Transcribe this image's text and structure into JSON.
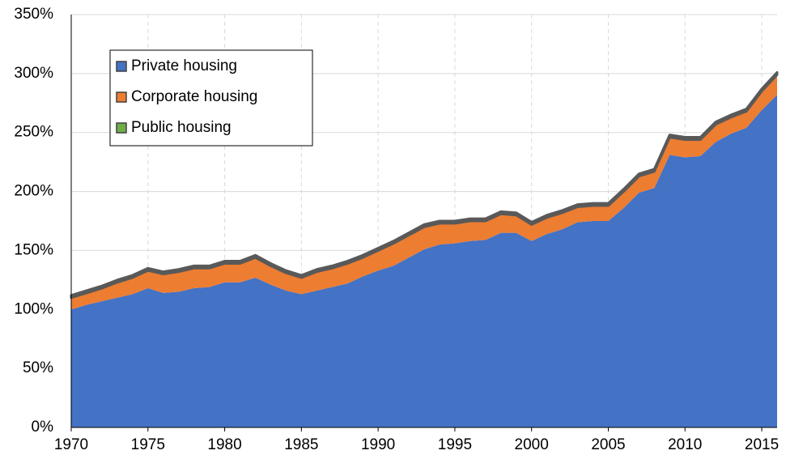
{
  "chart_data": {
    "type": "stacked_area",
    "x": [
      1970,
      1971,
      1972,
      1973,
      1974,
      1975,
      1976,
      1977,
      1978,
      1979,
      1980,
      1981,
      1982,
      1983,
      1984,
      1985,
      1986,
      1987,
      1988,
      1989,
      1990,
      1991,
      1992,
      1993,
      1994,
      1995,
      1996,
      1997,
      1998,
      1999,
      2000,
      2001,
      2002,
      2003,
      2004,
      2005,
      2006,
      2007,
      2008,
      2009,
      2010,
      2011,
      2012,
      2013,
      2014,
      2015,
      2016
    ],
    "series": [
      {
        "name": "Private housing",
        "color": "#4472c4",
        "values": [
          100,
          104,
          107,
          110,
          113,
          118,
          114,
          115,
          118,
          119,
          123,
          123,
          127,
          121,
          116,
          113,
          116,
          119,
          122,
          128,
          133,
          137,
          144,
          151,
          155,
          156,
          158,
          159,
          165,
          165,
          158,
          164,
          168,
          174,
          175,
          175,
          186,
          199,
          203,
          231,
          229,
          230,
          242,
          249,
          254,
          269,
          282
        ]
      },
      {
        "name": "Corporate housing",
        "color": "#ed7d31",
        "values": [
          10,
          10,
          11,
          13,
          14,
          15,
          16,
          17,
          17,
          16,
          16,
          16,
          17,
          16,
          15,
          14,
          16,
          16,
          17,
          16,
          17,
          19,
          19,
          19,
          18,
          17,
          17,
          16,
          16,
          15,
          14,
          14,
          14,
          13,
          13,
          13,
          14,
          14,
          14,
          15,
          15,
          14,
          15,
          14,
          14,
          16,
          17
        ]
      },
      {
        "name": "Public housing",
        "color": "#70ad47",
        "values": [
          2,
          2,
          2,
          2,
          2,
          2,
          2,
          2,
          2,
          2,
          2,
          2,
          2,
          2,
          2,
          2,
          2,
          2,
          2,
          2,
          2,
          2,
          2,
          2,
          2,
          2,
          2,
          2,
          2,
          2,
          2,
          2,
          2,
          2,
          2,
          2,
          2,
          2,
          2,
          2,
          2,
          2,
          2,
          2,
          2,
          2,
          2
        ]
      }
    ],
    "xlim": [
      1970,
      2016
    ],
    "xticks": [
      1970,
      1975,
      1980,
      1985,
      1990,
      1995,
      2000,
      2005,
      2010,
      2015
    ],
    "ylim": [
      0,
      350
    ],
    "yticks": [
      {
        "value": 0,
        "label": "0%"
      },
      {
        "value": 50,
        "label": "50%"
      },
      {
        "value": 100,
        "label": "100%"
      },
      {
        "value": 150,
        "label": "150%"
      },
      {
        "value": 200,
        "label": "200%"
      },
      {
        "value": 250,
        "label": "250%"
      },
      {
        "value": 300,
        "label": "300%"
      },
      {
        "value": 350,
        "label": "350%"
      }
    ],
    "grid": true,
    "legend": "upper left"
  }
}
